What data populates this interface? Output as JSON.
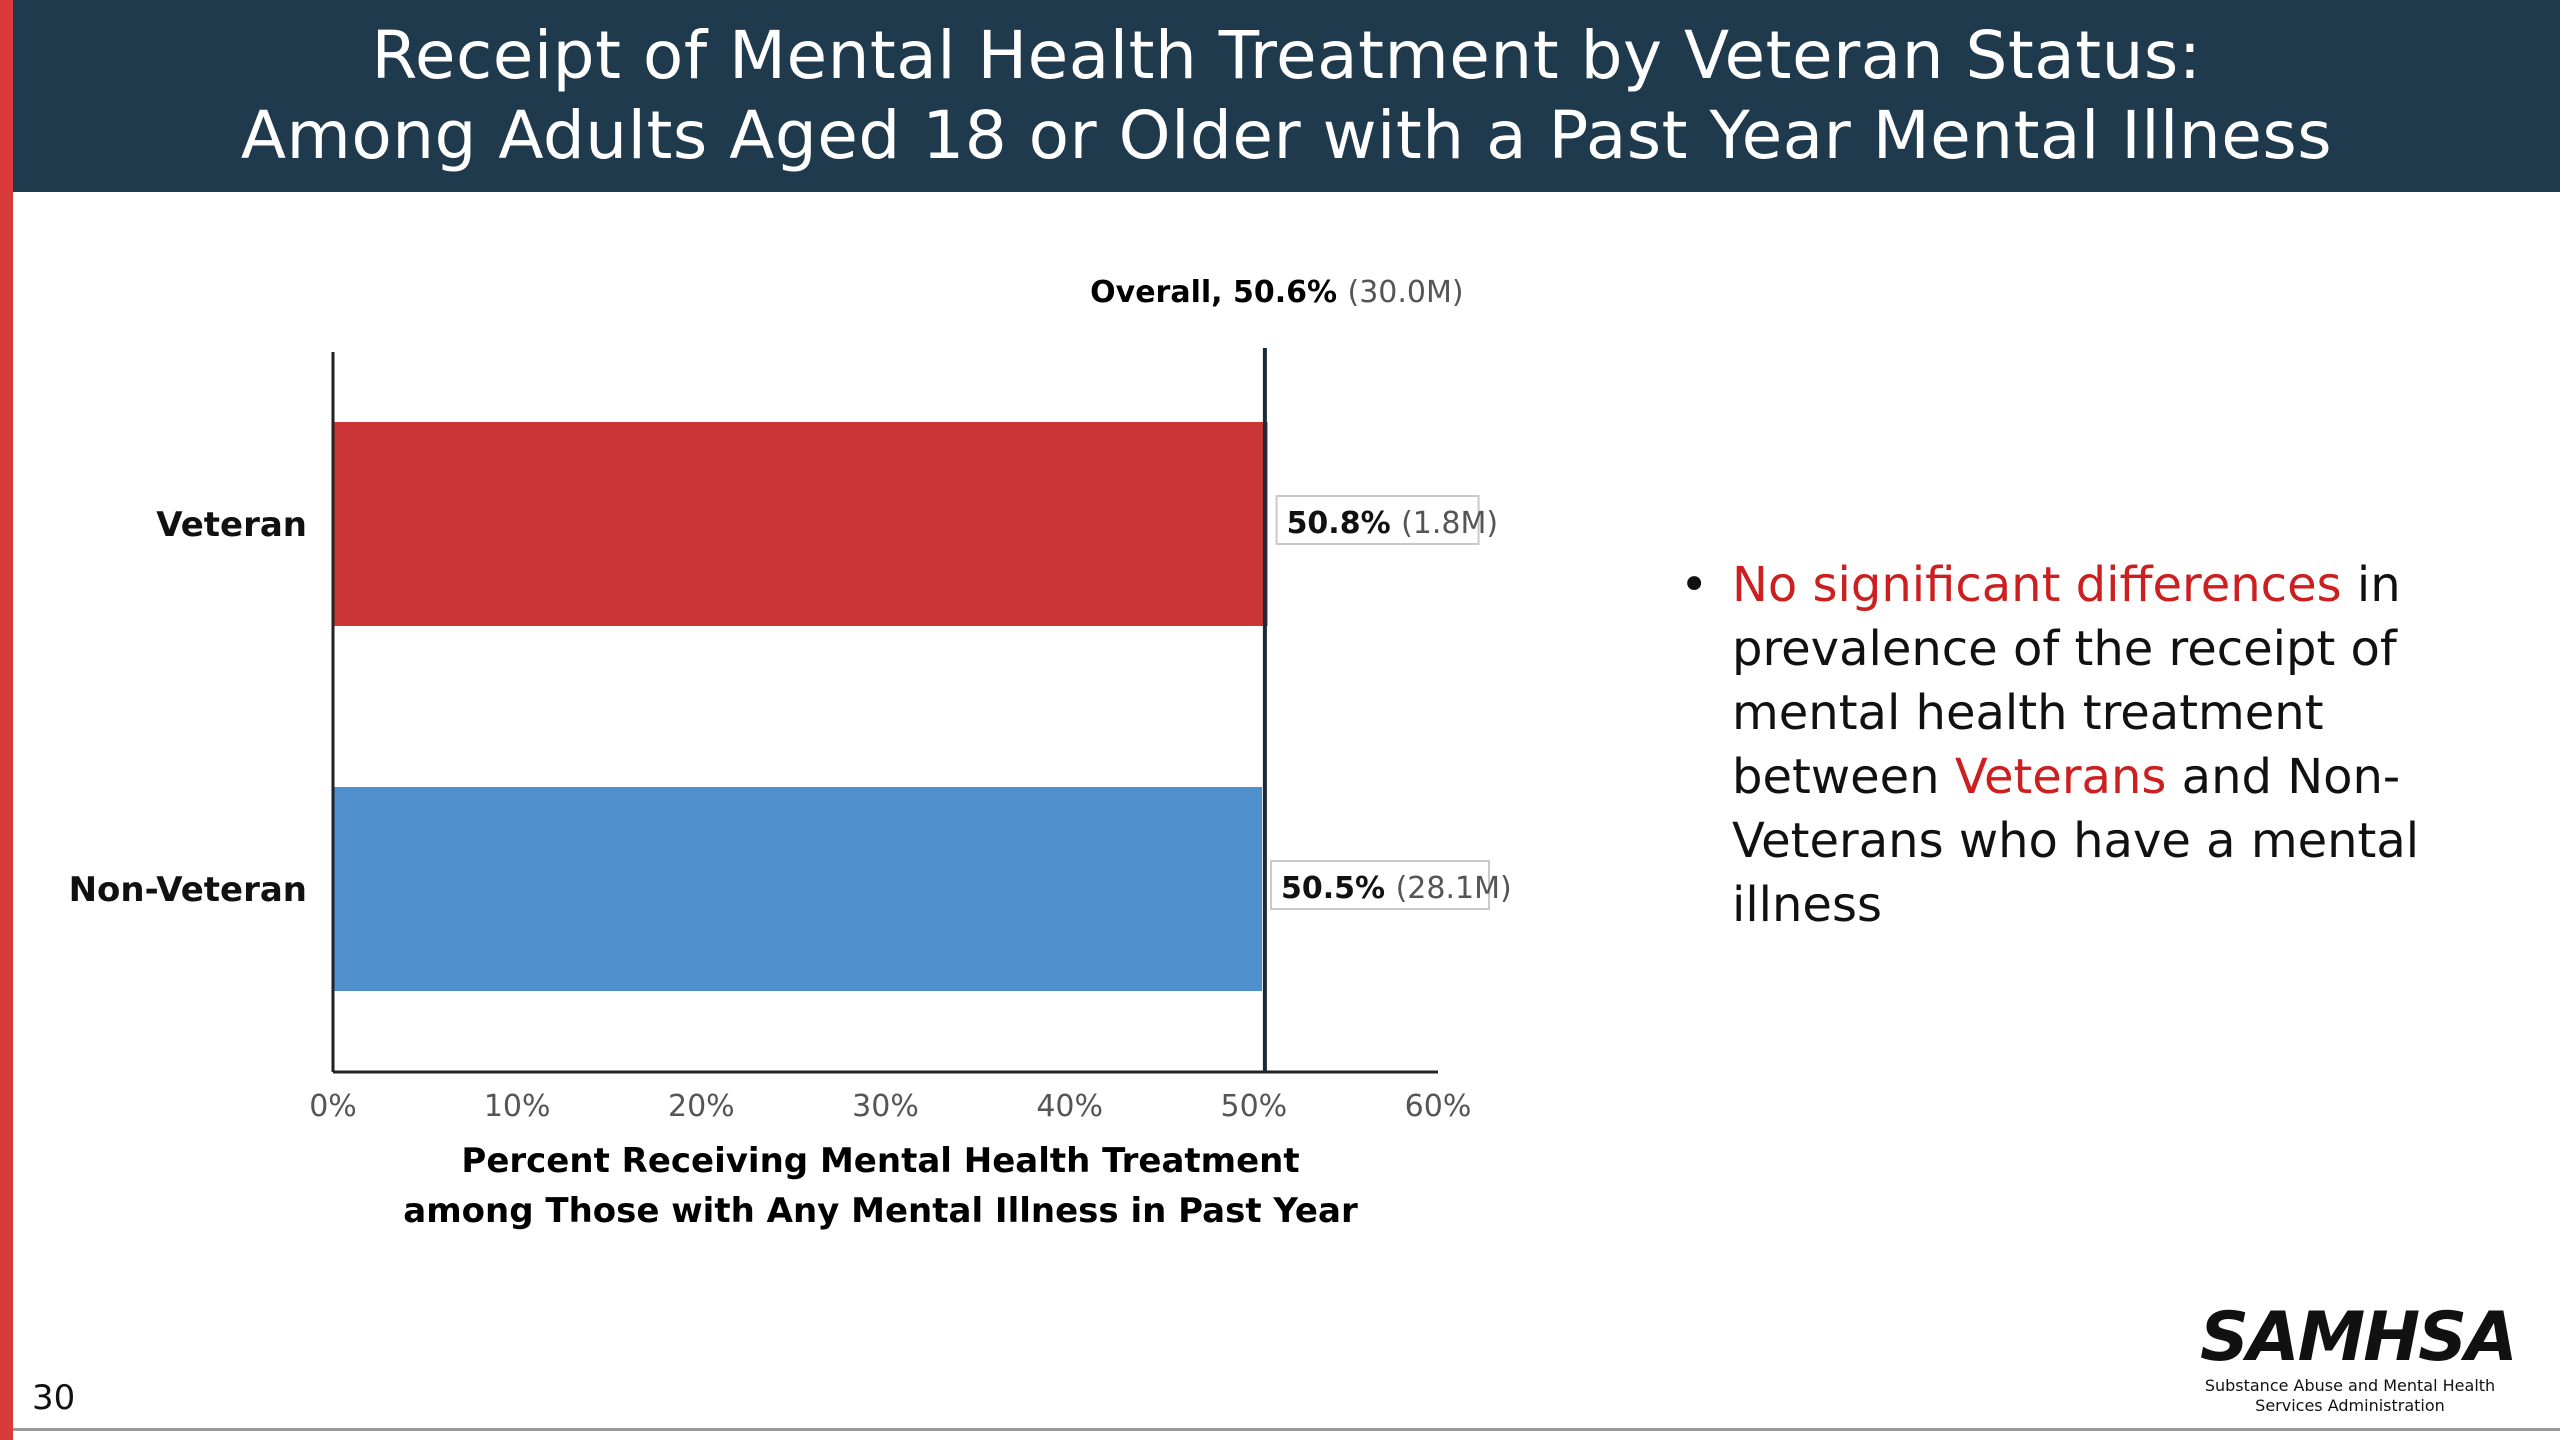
{
  "slide": {
    "title_line1": "Receipt of Mental Health Treatment by Veteran Status:",
    "title_line2": "Among Adults Aged 18 or Older with a Past Year Mental Illness",
    "page_number": "30",
    "bullet": {
      "highlight1": "No significant differences",
      "part1": " in prevalence of the receipt of mental health treatment between ",
      "highlight2": "Veterans",
      "part2": " and Non-Veterans who have a mental illness"
    },
    "logo": {
      "name": "SAMHSA",
      "subtitle_line1": "Substance Abuse and Mental Health",
      "subtitle_line2": "Services Administration"
    }
  },
  "chart_data": {
    "type": "bar",
    "orientation": "horizontal",
    "categories": [
      "Veteran",
      "Non-Veteran"
    ],
    "values": [
      50.8,
      50.5
    ],
    "value_labels": [
      "50.8%",
      "50.5%"
    ],
    "count_labels": [
      "(1.8M)",
      "(28.1M)"
    ],
    "bar_colors": [
      "#cc3535",
      "#4f8fcc"
    ],
    "reference_line": {
      "value": 50.6,
      "label": "Overall, 50.6%",
      "count_label": "(30.0M)"
    },
    "xlim": [
      0,
      60
    ],
    "xticks": [
      0,
      10,
      20,
      30,
      40,
      50,
      60
    ],
    "xtick_labels": [
      "0%",
      "10%",
      "20%",
      "30%",
      "40%",
      "50%",
      "60%"
    ],
    "xlabel_line1": "Percent Receiving Mental Health Treatment",
    "xlabel_line2": "among Those with Any Mental Illness in Past Year",
    "grid": false
  }
}
